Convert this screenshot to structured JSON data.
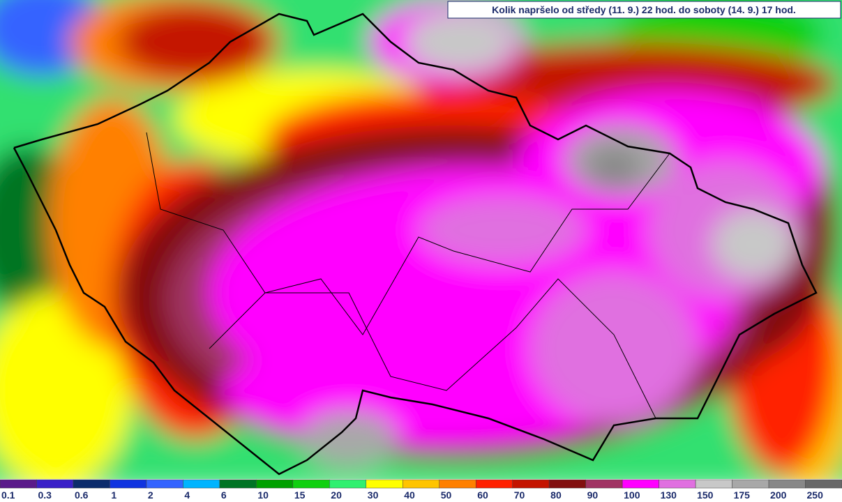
{
  "title": "Kolik napršelo od středy (11. 9.) 22 hod. do soboty (14. 9.) 17 hod.",
  "legend": [
    {
      "label": "0.1",
      "color": "#5a1a8a"
    },
    {
      "label": "0.3",
      "color": "#3a20c8"
    },
    {
      "label": "0.6",
      "color": "#0c2c6c"
    },
    {
      "label": "1",
      "color": "#1034e0"
    },
    {
      "label": "2",
      "color": "#3464ff"
    },
    {
      "label": "4",
      "color": "#00b4ff"
    },
    {
      "label": "6",
      "color": "#007424"
    },
    {
      "label": "10",
      "color": "#00a000"
    },
    {
      "label": "15",
      "color": "#10d010"
    },
    {
      "label": "20",
      "color": "#30f070"
    },
    {
      "label": "30",
      "color": "#ffff00"
    },
    {
      "label": "40",
      "color": "#ffc400"
    },
    {
      "label": "50",
      "color": "#ff8000"
    },
    {
      "label": "60",
      "color": "#ff2000"
    },
    {
      "label": "70",
      "color": "#c41400"
    },
    {
      "label": "80",
      "color": "#821010"
    },
    {
      "label": "90",
      "color": "#a03464"
    },
    {
      "label": "100",
      "color": "#ff00ff"
    },
    {
      "label": "130",
      "color": "#e070e0"
    },
    {
      "label": "150",
      "color": "#c8c8c8"
    },
    {
      "label": "175",
      "color": "#a8a8a8"
    },
    {
      "label": "200",
      "color": "#888888"
    },
    {
      "label": "250",
      "color": "#686868"
    }
  ]
}
